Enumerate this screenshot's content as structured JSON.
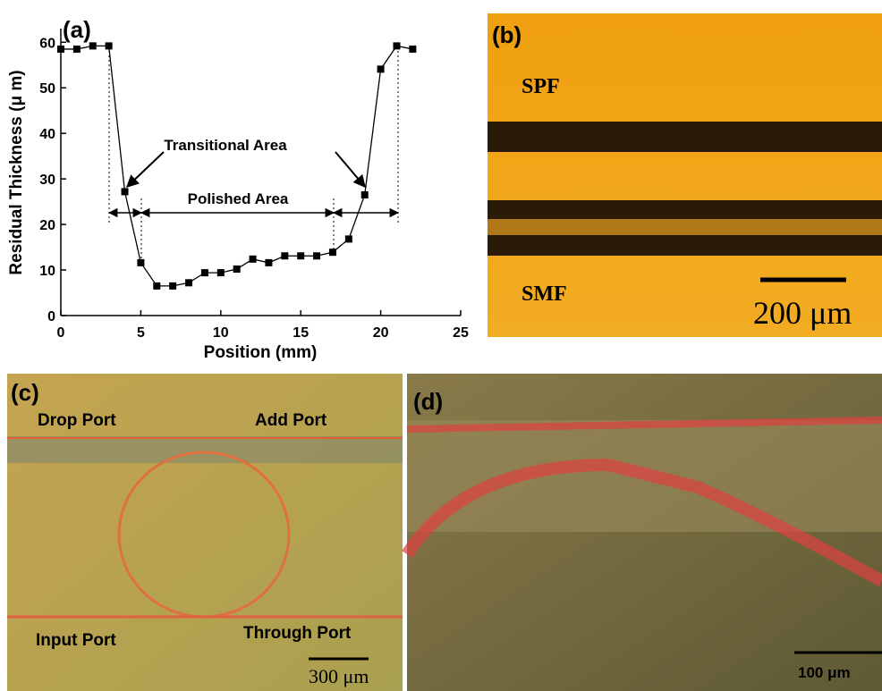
{
  "chart_data": {
    "type": "line",
    "panel_label": "(a)",
    "x_label": "Position (mm)",
    "y_label": "Residual Thickness (μ m)",
    "x": [
      0,
      1,
      2,
      3,
      4,
      5,
      6,
      7,
      8,
      9,
      10,
      11,
      12,
      13,
      14,
      15,
      16,
      17,
      18,
      19,
      20,
      21,
      22
    ],
    "series": [
      {
        "color": "#000000",
        "values": [
          58.5,
          58.5,
          59.2,
          59.2,
          27.2,
          11.6,
          6.5,
          6.5,
          7.2,
          9.4,
          9.4,
          10.2,
          12.4,
          11.6,
          13.1,
          13.1,
          13.1,
          13.9,
          16.8,
          26.5,
          54.1,
          59.2,
          58.5
        ]
      }
    ],
    "xlim": [
      0,
      25
    ],
    "xticks": [
      0,
      5,
      10,
      15,
      20,
      25
    ],
    "ylim": [
      0,
      63
    ],
    "yticks": [
      0,
      10,
      20,
      30,
      40,
      50,
      60
    ],
    "annotations": [
      "Transitional Area",
      "Polished Area"
    ]
  },
  "panels": {
    "b": {
      "label": "(b)",
      "top": "SPF",
      "bottom": "SMF",
      "scale": "200 μm"
    },
    "c": {
      "label": "(c)",
      "drop": "Drop Port",
      "add": "Add Port",
      "input": "Input Port",
      "through": "Through Port",
      "scale": "300 μm"
    },
    "d": {
      "label": "(d)",
      "scale": "100 μm"
    }
  }
}
